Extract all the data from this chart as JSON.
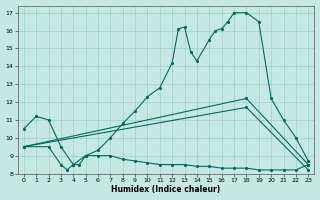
{
  "xlabel": "Humidex (Indice chaleur)",
  "bg_color": "#c6e8e2",
  "grid_color": "#9ecfc7",
  "line_color": "#006b63",
  "xlim": [
    -0.5,
    23.5
  ],
  "ylim": [
    8,
    17.4
  ],
  "yticks": [
    8,
    9,
    10,
    11,
    12,
    13,
    14,
    15,
    16,
    17
  ],
  "xticks": [
    0,
    1,
    2,
    3,
    4,
    5,
    6,
    7,
    8,
    9,
    10,
    11,
    12,
    13,
    14,
    15,
    16,
    17,
    18,
    19,
    20,
    21,
    22,
    23
  ],
  "line1_x": [
    0,
    1,
    2,
    3,
    4,
    5,
    6,
    7,
    8,
    9,
    10,
    11,
    12,
    12.5,
    13,
    13.5,
    14,
    15,
    15.5,
    16,
    16.5,
    17,
    18,
    19,
    20,
    21,
    22,
    23
  ],
  "line1_y": [
    10.5,
    11.2,
    11.0,
    9.5,
    8.5,
    9.0,
    9.3,
    10.0,
    10.8,
    11.5,
    12.3,
    12.8,
    14.2,
    16.1,
    16.2,
    14.8,
    14.3,
    15.5,
    16.0,
    16.1,
    16.5,
    17.0,
    17.0,
    16.5,
    12.2,
    11.0,
    10.0,
    8.7
  ],
  "line2_x": [
    0,
    2,
    3,
    3.5,
    4,
    4.5,
    5,
    6,
    7,
    8,
    9,
    10,
    11,
    12,
    13,
    14,
    15,
    16,
    17,
    18,
    19,
    20,
    21,
    22,
    23
  ],
  "line2_y": [
    9.5,
    9.5,
    8.5,
    8.2,
    8.5,
    8.5,
    9.0,
    9.0,
    9.0,
    8.8,
    8.7,
    8.6,
    8.5,
    8.5,
    8.5,
    8.4,
    8.4,
    8.3,
    8.3,
    8.3,
    8.2,
    8.2,
    8.2,
    8.2,
    8.5
  ],
  "line3_x": [
    0,
    18,
    23
  ],
  "line3_y": [
    9.5,
    12.2,
    8.5
  ],
  "line4_x": [
    0,
    18,
    23
  ],
  "line4_y": [
    9.5,
    11.7,
    8.2
  ],
  "figsize": [
    3.2,
    2.0
  ],
  "dpi": 100
}
